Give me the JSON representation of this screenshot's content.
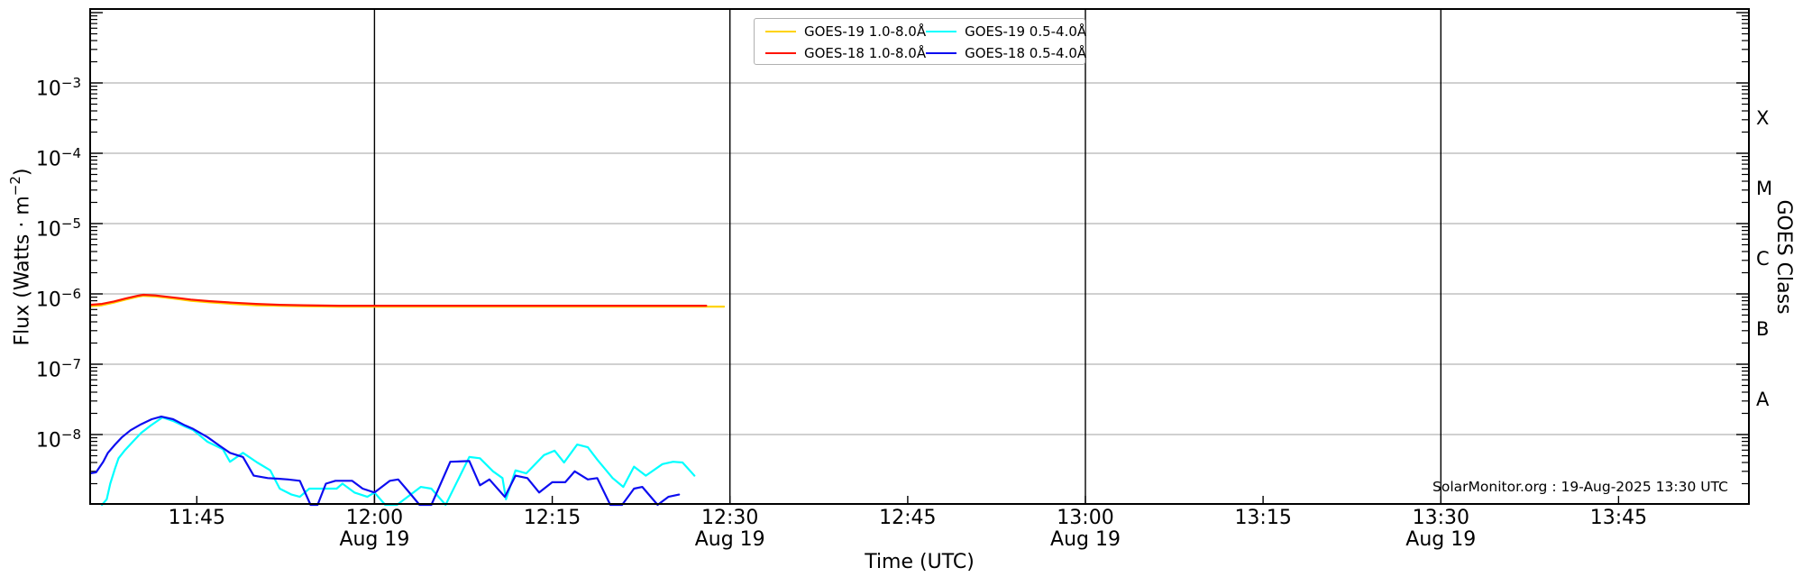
{
  "watermark": "SolarMonitor.org : 19-Aug-2025 13:30 UTC",
  "chart_data": {
    "type": "line",
    "title": "",
    "xlabel": "Time (UTC)",
    "ylabel": {
      "pre": "Flux (Watts · m",
      "sup": "−2",
      "post": ")"
    },
    "ylabel_right": "GOES Class",
    "x_axis": {
      "start": "11:36",
      "end": "13:56",
      "date": "Aug 19",
      "unit": "minutes since 11:36 UTC"
    },
    "x_total_minutes": 140,
    "ylim": [
      1e-09,
      0.01
    ],
    "grid": {
      "horizontal": "log decades, light gray",
      "vertical": "30-minute marks, black"
    },
    "y_ticks": [
      {
        "v": 0.001,
        "base": "10",
        "exp": "−3"
      },
      {
        "v": 0.0001,
        "base": "10",
        "exp": "−4"
      },
      {
        "v": 1e-05,
        "base": "10",
        "exp": "−5"
      },
      {
        "v": 1e-06,
        "base": "10",
        "exp": "−6"
      },
      {
        "v": 1e-07,
        "base": "10",
        "exp": "−7"
      },
      {
        "v": 1e-08,
        "base": "10",
        "exp": "−8"
      }
    ],
    "x_ticks": [
      {
        "t": 9,
        "label": "11:45"
      },
      {
        "t": 24,
        "label": "12:00",
        "sub": "Aug 19",
        "grid": true
      },
      {
        "t": 39,
        "label": "12:15"
      },
      {
        "t": 54,
        "label": "12:30",
        "sub": "Aug 19",
        "grid": true
      },
      {
        "t": 69,
        "label": "12:45"
      },
      {
        "t": 84,
        "label": "13:00",
        "sub": "Aug 19",
        "grid": true
      },
      {
        "t": 99,
        "label": "13:15"
      },
      {
        "t": 114,
        "label": "13:30",
        "sub": "Aug 19",
        "grid": true
      },
      {
        "t": 129,
        "label": "13:45"
      }
    ],
    "goes_class_labels": [
      {
        "label": "X",
        "v": 0.00032
      },
      {
        "label": "M",
        "v": 3.2e-05
      },
      {
        "label": "C",
        "v": 3.2e-06
      },
      {
        "label": "B",
        "v": 3.2e-07
      },
      {
        "label": "A",
        "v": 3.2e-08
      }
    ],
    "legend": {
      "position": "upper center",
      "order": [
        0,
        2,
        1,
        3
      ]
    },
    "series": [
      {
        "name": "GOES-19 1.0-8.0Å",
        "color": "#ffd300",
        "points": [
          [
            0,
            6.7e-07
          ],
          [
            1,
            6.9e-07
          ],
          [
            2,
            7.5e-07
          ],
          [
            3,
            8.3e-07
          ],
          [
            4,
            9.1e-07
          ],
          [
            4.5,
            9.4e-07
          ],
          [
            5.5,
            9.2e-07
          ],
          [
            6.5,
            8.8e-07
          ],
          [
            7.5,
            8.4e-07
          ],
          [
            8.5,
            8e-07
          ],
          [
            10,
            7.6e-07
          ],
          [
            12,
            7.2e-07
          ],
          [
            14,
            6.9e-07
          ],
          [
            16,
            6.8e-07
          ],
          [
            18,
            6.7e-07
          ],
          [
            21,
            6.6e-07
          ],
          [
            24,
            6.6e-07
          ],
          [
            28,
            6.6e-07
          ],
          [
            32,
            6.6e-07
          ],
          [
            36,
            6.6e-07
          ],
          [
            40,
            6.6e-07
          ],
          [
            44,
            6.6e-07
          ],
          [
            48,
            6.6e-07
          ],
          [
            52,
            6.6e-07
          ],
          [
            53.5,
            6.6e-07
          ]
        ]
      },
      {
        "name": "GOES-18 1.0-8.0Å",
        "color": "#ff1400",
        "points": [
          [
            0,
            7e-07
          ],
          [
            1,
            7.2e-07
          ],
          [
            2,
            7.8e-07
          ],
          [
            3,
            8.6e-07
          ],
          [
            4,
            9.4e-07
          ],
          [
            4.5,
            9.7e-07
          ],
          [
            5.5,
            9.5e-07
          ],
          [
            6.5,
            9.1e-07
          ],
          [
            7.5,
            8.7e-07
          ],
          [
            8.5,
            8.3e-07
          ],
          [
            10,
            7.9e-07
          ],
          [
            12,
            7.5e-07
          ],
          [
            14,
            7.2e-07
          ],
          [
            16,
            7e-07
          ],
          [
            18,
            6.9e-07
          ],
          [
            21,
            6.8e-07
          ],
          [
            24,
            6.8e-07
          ],
          [
            28,
            6.8e-07
          ],
          [
            32,
            6.8e-07
          ],
          [
            36,
            6.8e-07
          ],
          [
            40,
            6.8e-07
          ],
          [
            44,
            6.8e-07
          ],
          [
            48,
            6.8e-07
          ],
          [
            52,
            6.8e-07
          ]
        ]
      },
      {
        "name": "GOES-19 0.5-4.0Å",
        "color": "#00ffff",
        "points": [
          [
            1,
            1e-09
          ],
          [
            1.4,
            1.2e-09
          ],
          [
            1.7,
            2e-09
          ],
          [
            2.1,
            3.3e-09
          ],
          [
            2.4,
            4.6e-09
          ],
          [
            2.9,
            5.9e-09
          ],
          [
            3.6,
            7.9e-09
          ],
          [
            4.3,
            1.05e-08
          ],
          [
            5.1,
            1.34e-08
          ],
          [
            6.1,
            1.75e-08
          ],
          [
            7,
            1.56e-08
          ],
          [
            8,
            1.3e-08
          ],
          [
            8.7,
            1.16e-08
          ],
          [
            9.9,
            7.9e-09
          ],
          [
            11.2,
            6.2e-09
          ],
          [
            11.8,
            4.1e-09
          ],
          [
            12.9,
            5.5e-09
          ],
          [
            14.1,
            4e-09
          ],
          [
            15.2,
            3.1e-09
          ],
          [
            16,
            1.7e-09
          ],
          [
            17,
            1.4e-09
          ],
          [
            17.7,
            1.3e-09
          ],
          [
            18.5,
            1.7e-09
          ],
          [
            19.8,
            1.7e-09
          ],
          [
            20.8,
            1.7e-09
          ],
          [
            21.3,
            2e-09
          ],
          [
            22.3,
            1.5e-09
          ],
          [
            23.4,
            1.3e-09
          ],
          [
            24,
            1.5e-09
          ],
          [
            24.9,
            1e-09
          ],
          [
            25.9,
            1e-09
          ],
          [
            27.9,
            1.8e-09
          ],
          [
            28.8,
            1.7e-09
          ],
          [
            30,
            1e-09
          ],
          [
            32,
            4.8e-09
          ],
          [
            32.9,
            4.6e-09
          ],
          [
            34,
            3e-09
          ],
          [
            34.8,
            2.4e-09
          ],
          [
            35.1,
            1.2e-09
          ],
          [
            35.9,
            3.1e-09
          ],
          [
            36.8,
            2.8e-09
          ],
          [
            38.3,
            5.1e-09
          ],
          [
            39.2,
            5.9e-09
          ],
          [
            40,
            4e-09
          ],
          [
            41.1,
            7.2e-09
          ],
          [
            42,
            6.6e-09
          ],
          [
            42.8,
            4.4e-09
          ],
          [
            44.1,
            2.4e-09
          ],
          [
            45,
            1.8e-09
          ],
          [
            45.9,
            3.5e-09
          ],
          [
            46.9,
            2.6e-09
          ],
          [
            48.3,
            3.8e-09
          ],
          [
            49.2,
            4.1e-09
          ],
          [
            50,
            4e-09
          ],
          [
            51,
            2.6e-09
          ]
        ]
      },
      {
        "name": "GOES-18 0.5-4.0Å",
        "color": "#0d0df0",
        "points": [
          [
            0,
            2.8e-09
          ],
          [
            0.5,
            2.9e-09
          ],
          [
            1.1,
            4.1e-09
          ],
          [
            1.5,
            5.5e-09
          ],
          [
            2.1,
            7.2e-09
          ],
          [
            2.7,
            9.2e-09
          ],
          [
            3.4,
            1.15e-08
          ],
          [
            4.3,
            1.4e-08
          ],
          [
            5.2,
            1.65e-08
          ],
          [
            6,
            1.8e-08
          ],
          [
            7,
            1.65e-08
          ],
          [
            8,
            1.35e-08
          ],
          [
            8.7,
            1.2e-08
          ],
          [
            9.9,
            9.2e-09
          ],
          [
            11,
            6.8e-09
          ],
          [
            11.8,
            5.5e-09
          ],
          [
            12.9,
            4.8e-09
          ],
          [
            13.8,
            2.6e-09
          ],
          [
            15,
            2.4e-09
          ],
          [
            16,
            2.35e-09
          ],
          [
            16.7,
            2.3e-09
          ],
          [
            17.7,
            2.2e-09
          ],
          [
            18.6,
            1e-09
          ],
          [
            19.2,
            1e-09
          ],
          [
            19.9,
            2e-09
          ],
          [
            20.7,
            2.2e-09
          ],
          [
            22.1,
            2.2e-09
          ],
          [
            23,
            1.7e-09
          ],
          [
            24,
            1.5e-09
          ],
          [
            25.3,
            2.2e-09
          ],
          [
            26,
            2.3e-09
          ],
          [
            26.8,
            1.6e-09
          ],
          [
            27.8,
            1e-09
          ],
          [
            28.8,
            1e-09
          ],
          [
            30.4,
            4.1e-09
          ],
          [
            32,
            4.2e-09
          ],
          [
            32.9,
            1.9e-09
          ],
          [
            33.7,
            2.3e-09
          ],
          [
            35,
            1.3e-09
          ],
          [
            35.9,
            2.6e-09
          ],
          [
            36.9,
            2.4e-09
          ],
          [
            37.9,
            1.5e-09
          ],
          [
            39,
            2.1e-09
          ],
          [
            40.1,
            2.1e-09
          ],
          [
            40.9,
            3e-09
          ],
          [
            42,
            2.3e-09
          ],
          [
            42.8,
            2.4e-09
          ],
          [
            43.9,
            1e-09
          ],
          [
            44.9,
            1e-09
          ],
          [
            45.9,
            1.7e-09
          ],
          [
            46.6,
            1.8e-09
          ],
          [
            47.9,
            1e-09
          ],
          [
            48.8,
            1.3e-09
          ],
          [
            49.7,
            1.4e-09
          ]
        ]
      }
    ]
  }
}
